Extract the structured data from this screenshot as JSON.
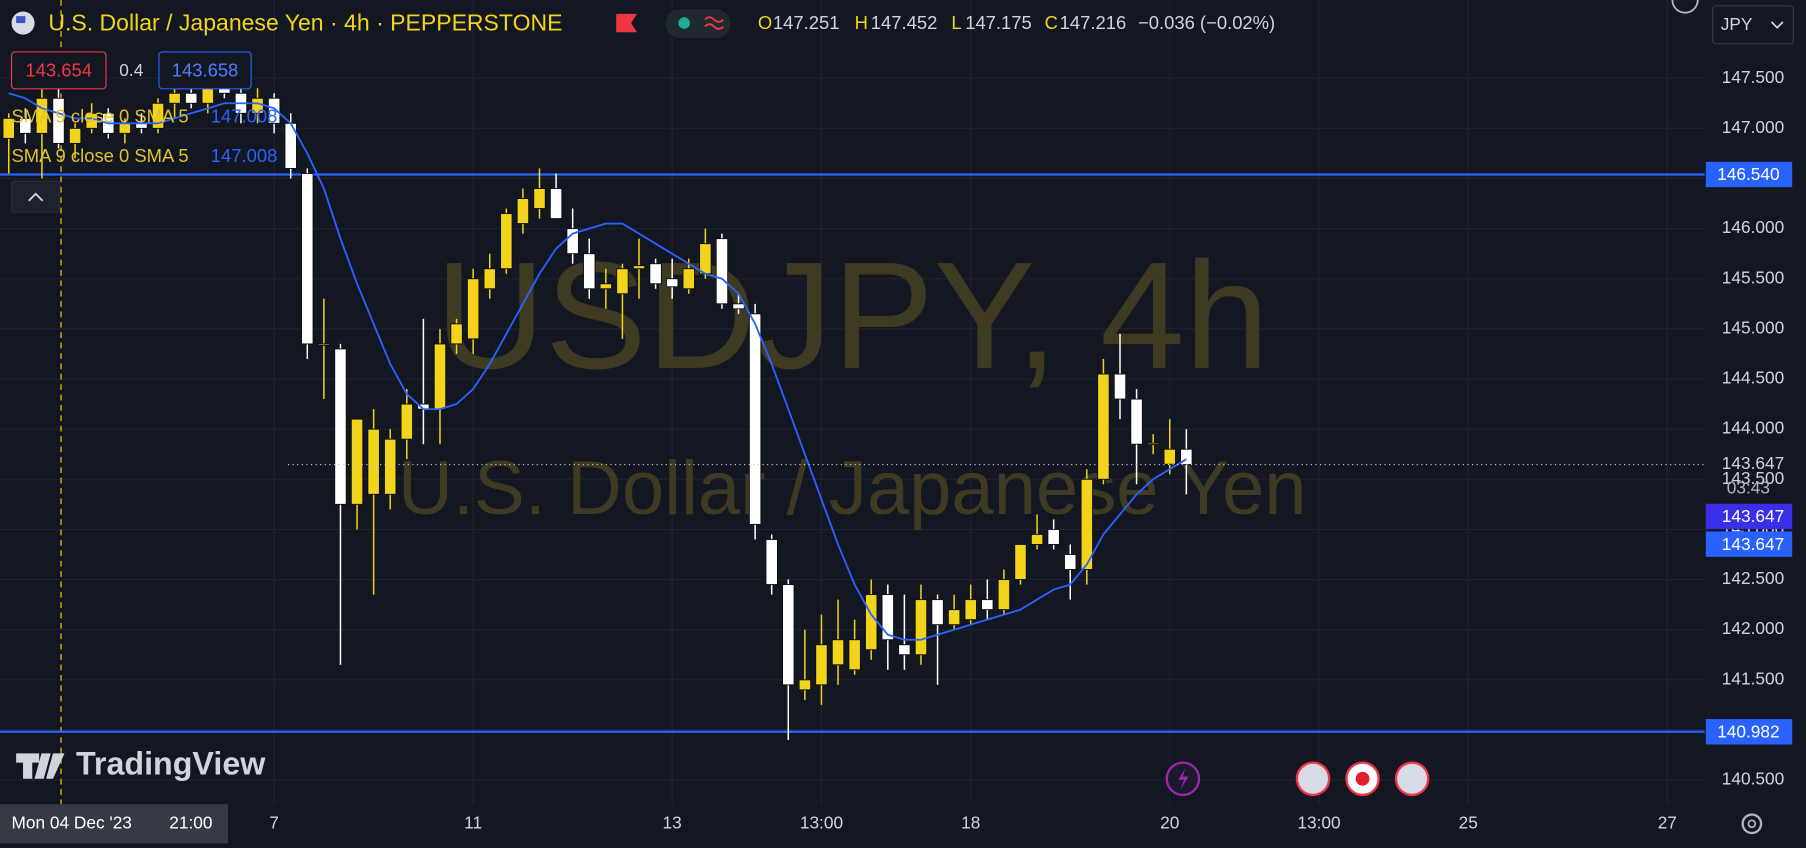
{
  "chart_data": {
    "type": "candlestick",
    "title": "U.S. Dollar / Japanese Yen · 4h · PEPPERSTONE",
    "ohlc_labels": [
      "O",
      "H",
      "L",
      "C"
    ],
    "ohlc_values": [
      147.251,
      147.452,
      147.175,
      147.216
    ],
    "change": "−0.036 (−0.02%)",
    "currency": "JPY",
    "watermark": "USDJPY, 4h",
    "watermark_subtitle": "U.S. Dollar / Japanese Yen",
    "bid": 143.654,
    "spread": 0.4,
    "ask": 143.658,
    "indicators": [
      {
        "name": "SMA 9 close 0 SMA 5",
        "value": 147.008
      },
      {
        "name": "SMA 9 close 0 SMA 5",
        "value": 147.008
      }
    ],
    "brand": "TradingView",
    "crosshair_label": "Mon 04 Dec '23",
    "crosshair_time": "21:00",
    "categories": [
      null,
      null,
      null,
      null,
      null,
      null,
      null,
      null,
      null,
      null,
      null,
      null,
      null,
      null,
      null,
      null,
      "7",
      null,
      null,
      null,
      null,
      null,
      null,
      null,
      null,
      null,
      null,
      null,
      "11",
      null,
      null,
      null,
      null,
      null,
      null,
      null,
      null,
      null,
      null,
      null,
      "13",
      null,
      null,
      null,
      null,
      null,
      null,
      null,
      null,
      "13:00",
      null,
      null,
      null,
      null,
      null,
      null,
      null,
      null,
      "18",
      null,
      null,
      null,
      null,
      null,
      null,
      null,
      null,
      null,
      null,
      null,
      "20",
      null,
      null,
      null,
      null,
      null,
      null,
      null,
      null,
      "13:00",
      null,
      null,
      null,
      null,
      null,
      null,
      null,
      null,
      "25",
      null,
      null,
      null,
      null,
      null,
      null,
      null,
      null,
      null,
      null,
      null,
      "27"
    ],
    "open": [
      146.9,
      147.1,
      146.95,
      147.3,
      146.85,
      147.0,
      147.15,
      146.95,
      147.05,
      147.0,
      147.25,
      147.35,
      147.25,
      147.45,
      147.35,
      147.15,
      147.3,
      147.05,
      146.55,
      144.85,
      144.8,
      143.25,
      143.35,
      143.35,
      143.9,
      144.25,
      144.2,
      144.85,
      144.9,
      145.4,
      145.6,
      146.05,
      146.2,
      146.4,
      146.0,
      145.75,
      145.4,
      145.35,
      145.6,
      145.65,
      145.5,
      145.4,
      145.55,
      145.9,
      145.25,
      145.15,
      142.9,
      142.45,
      141.4,
      141.45,
      141.65,
      141.6,
      141.8,
      142.35,
      141.85,
      141.75,
      142.3,
      142.05,
      142.1,
      142.3,
      142.2,
      142.5,
      142.85,
      143.0,
      142.75,
      142.6,
      143.5,
      144.55,
      144.3,
      143.85,
      143.65,
      143.8,
      null,
      null,
      null,
      null,
      null,
      null,
      null,
      null,
      null,
      null,
      null,
      null,
      null,
      null,
      null,
      null,
      null,
      null,
      null,
      null,
      null,
      null,
      null,
      null,
      null,
      null,
      null,
      null,
      null
    ],
    "high": [
      147.15,
      147.2,
      147.45,
      147.4,
      147.05,
      147.25,
      147.2,
      147.1,
      147.15,
      147.3,
      147.45,
      147.5,
      147.55,
      147.55,
      147.4,
      147.4,
      147.35,
      147.15,
      146.6,
      145.3,
      144.85,
      144.1,
      144.2,
      144.0,
      144.4,
      145.1,
      145.0,
      145.1,
      145.6,
      145.75,
      146.2,
      146.4,
      146.6,
      146.55,
      146.2,
      145.9,
      145.6,
      145.65,
      145.9,
      145.7,
      145.7,
      145.7,
      146.0,
      145.95,
      145.35,
      145.25,
      142.95,
      142.5,
      142.0,
      142.15,
      142.3,
      142.1,
      142.5,
      142.45,
      142.35,
      142.45,
      142.35,
      142.35,
      142.45,
      142.5,
      142.6,
      142.85,
      143.15,
      143.1,
      142.85,
      143.6,
      144.7,
      144.95,
      144.4,
      143.95,
      144.1,
      144.0,
      null,
      null,
      null,
      null,
      null,
      null,
      null,
      null,
      null,
      null,
      null,
      null,
      null,
      null,
      null,
      null,
      null,
      null,
      null,
      null,
      null,
      null,
      null,
      null,
      null,
      null,
      null,
      null,
      null
    ],
    "low": [
      146.55,
      146.85,
      146.5,
      146.8,
      146.7,
      146.95,
      146.9,
      146.85,
      146.95,
      146.95,
      147.1,
      147.2,
      147.15,
      147.3,
      147.05,
      147.05,
      146.95,
      146.5,
      144.7,
      144.3,
      141.65,
      143.0,
      142.35,
      143.2,
      143.7,
      143.85,
      143.85,
      144.75,
      144.75,
      145.3,
      145.55,
      145.95,
      146.1,
      146.1,
      145.65,
      145.3,
      145.2,
      144.9,
      145.3,
      145.4,
      145.3,
      145.35,
      145.5,
      145.2,
      145.15,
      142.9,
      142.35,
      140.9,
      141.3,
      141.25,
      141.45,
      141.55,
      141.7,
      141.6,
      141.6,
      141.65,
      141.45,
      142.0,
      142.05,
      142.1,
      142.15,
      142.45,
      142.8,
      142.8,
      142.3,
      142.45,
      143.45,
      144.1,
      143.45,
      143.75,
      143.55,
      143.35,
      null,
      null,
      null,
      null,
      null,
      null,
      null,
      null,
      null,
      null,
      null,
      null,
      null,
      null,
      null,
      null,
      null,
      null,
      null,
      null,
      null,
      null,
      null,
      null,
      null,
      null,
      null,
      null,
      null
    ],
    "close": [
      147.1,
      146.95,
      147.3,
      146.85,
      147.0,
      147.15,
      146.95,
      147.05,
      147.0,
      147.25,
      147.35,
      147.25,
      147.45,
      147.35,
      147.15,
      147.3,
      147.05,
      146.6,
      144.85,
      144.85,
      143.25,
      144.1,
      144.0,
      143.9,
      144.25,
      144.2,
      144.85,
      145.05,
      145.5,
      145.6,
      146.15,
      146.3,
      146.4,
      146.1,
      145.75,
      145.4,
      145.45,
      145.6,
      145.63,
      145.45,
      145.42,
      145.6,
      145.85,
      145.25,
      145.2,
      143.05,
      142.45,
      141.45,
      141.5,
      141.85,
      141.9,
      141.9,
      142.35,
      141.9,
      141.75,
      142.3,
      142.05,
      142.2,
      142.3,
      142.2,
      142.5,
      142.85,
      142.95,
      142.85,
      142.6,
      143.5,
      144.55,
      144.3,
      143.85,
      143.86,
      143.8,
      143.647,
      null,
      null,
      null,
      null,
      null,
      null,
      null,
      null,
      null,
      null,
      null,
      null,
      null,
      null,
      null,
      null,
      null,
      null,
      null,
      null,
      null,
      null,
      null,
      null,
      null,
      null,
      null,
      null,
      null
    ],
    "up_color": "#f2d41c",
    "down_color": "#ffffff",
    "sma": {
      "color": "#2962ff",
      "values": [
        147.35,
        147.3,
        147.2,
        147.15,
        147.1,
        147.1,
        147.05,
        147.05,
        147.05,
        147.05,
        147.1,
        147.15,
        147.2,
        147.25,
        147.25,
        147.25,
        147.2,
        147.05,
        146.75,
        146.4,
        145.9,
        145.45,
        145.05,
        144.65,
        144.35,
        144.2,
        144.2,
        144.25,
        144.4,
        144.65,
        144.95,
        145.25,
        145.55,
        145.8,
        145.95,
        146.0,
        146.05,
        146.05,
        145.95,
        145.85,
        145.75,
        145.65,
        145.55,
        145.5,
        145.35,
        145.05,
        144.65,
        144.2,
        143.75,
        143.3,
        142.85,
        142.45,
        142.15,
        141.95,
        141.9,
        141.9,
        141.95,
        142.0,
        142.05,
        142.1,
        142.15,
        142.2,
        142.3,
        142.4,
        142.45,
        142.65,
        142.95,
        143.15,
        143.35,
        143.5,
        143.6,
        143.7,
        null,
        null,
        null,
        null,
        null,
        null,
        null,
        null,
        null,
        null,
        null,
        null,
        null,
        null,
        null,
        null,
        null,
        null,
        null,
        null,
        null,
        null,
        null,
        null,
        null,
        null,
        null,
        null,
        null
      ]
    },
    "ylim": [
      140.26,
      148.28
    ],
    "yticks": [
      {
        "value": 140.5,
        "label": "140.500"
      },
      {
        "value": 141,
        "label": "141.000"
      },
      {
        "value": 141.5,
        "label": "141.500"
      },
      {
        "value": 142,
        "label": "142.000"
      },
      {
        "value": 142.5,
        "label": "142.500"
      },
      {
        "value": 143,
        "label": "143.000"
      },
      {
        "value": 143.5,
        "label": "143.500"
      },
      {
        "value": 144,
        "label": "144.000"
      },
      {
        "value": 144.5,
        "label": "144.500"
      },
      {
        "value": 145,
        "label": "145.000"
      },
      {
        "value": 145.5,
        "label": "145.500"
      },
      {
        "value": 146,
        "label": "146.000"
      },
      {
        "value": 146.5,
        "label": "146.500"
      },
      {
        "value": 147,
        "label": "147.000"
      },
      {
        "value": 147.5,
        "label": "147.500"
      }
    ],
    "grid": true,
    "hlines": [
      {
        "value": 146.54,
        "label": "146.540",
        "color": "#2962ff"
      },
      {
        "value": 140.982,
        "label": "140.982",
        "color": "#2962ff"
      }
    ],
    "last_price": 143.647,
    "countdown": "03:43",
    "price_tags": [
      143.647,
      143.647
    ],
    "price_tag_colors": [
      "#3a2fe6",
      "#2962ff"
    ]
  }
}
